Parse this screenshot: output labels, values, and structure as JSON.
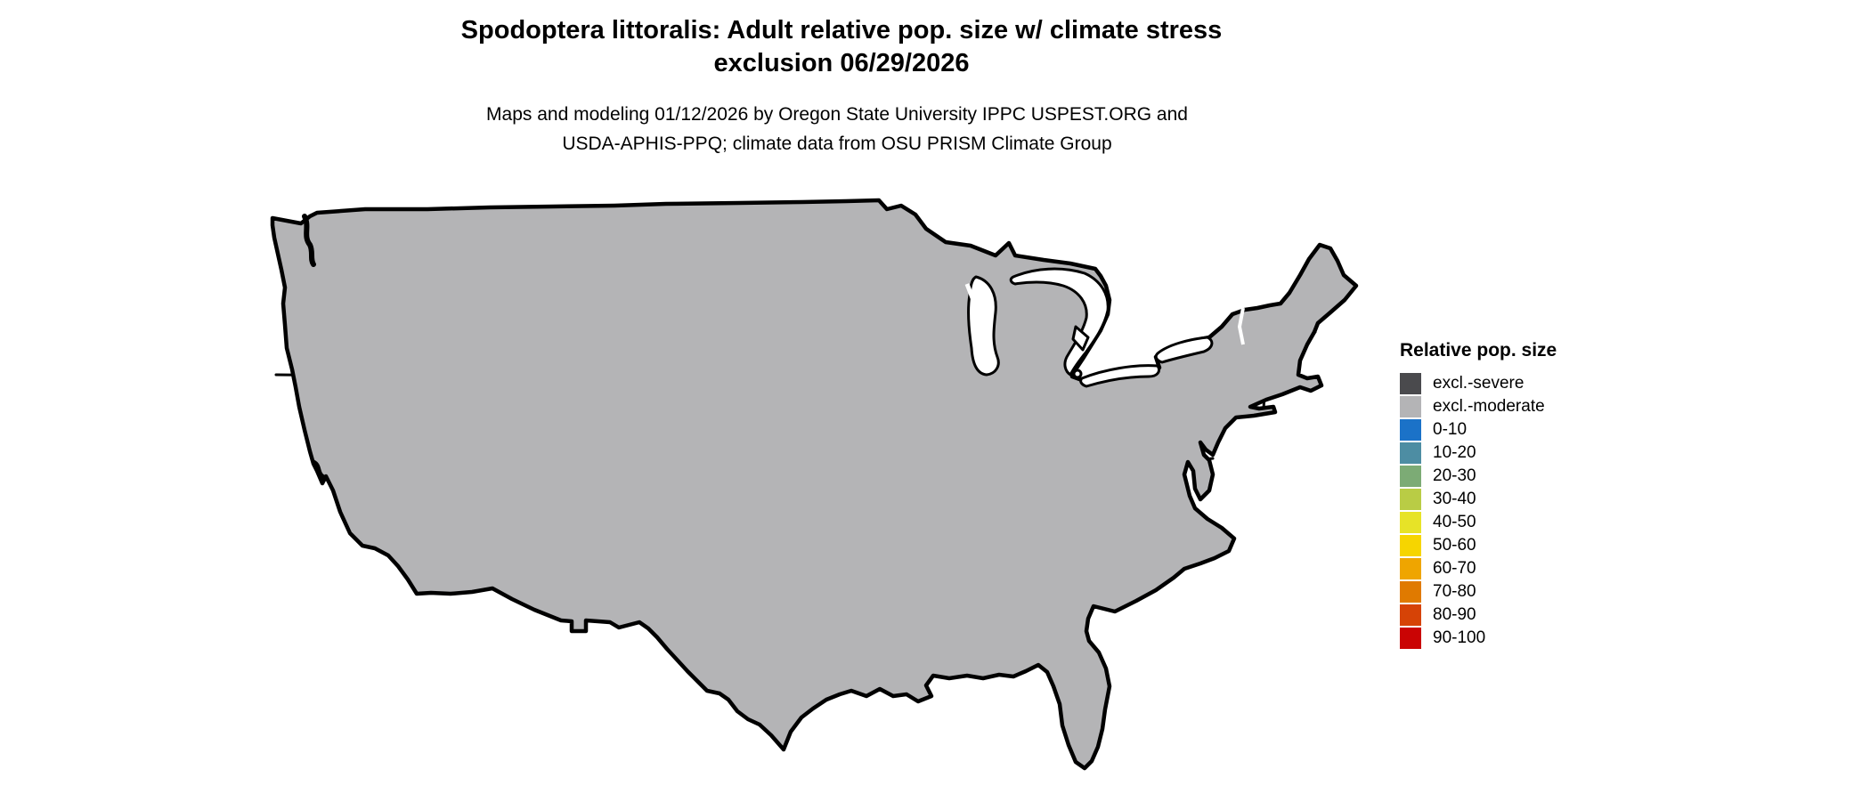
{
  "title": {
    "line1": "Spodoptera littoralis: Adult relative pop. size w/ climate stress",
    "line2": "exclusion 06/29/2026"
  },
  "subtitle": {
    "line1": "Maps and modeling 01/12/2026 by Oregon State University IPPC USPEST.ORG and",
    "line2": "USDA-APHIS-PPQ; climate data from OSU PRISM Climate Group"
  },
  "legend": {
    "title": "Relative pop. size",
    "items": [
      {
        "label": "excl.-severe",
        "color": "#4a4a4d"
      },
      {
        "label": "excl.-moderate",
        "color": "#b4b4b6"
      },
      {
        "label": "0-10",
        "color": "#1b72c8"
      },
      {
        "label": "10-20",
        "color": "#4d8da3"
      },
      {
        "label": "20-30",
        "color": "#7cab75"
      },
      {
        "label": "30-40",
        "color": "#b9cc45"
      },
      {
        "label": "40-50",
        "color": "#e7e327"
      },
      {
        "label": "50-60",
        "color": "#f6d500"
      },
      {
        "label": "60-70",
        "color": "#efa500"
      },
      {
        "label": "70-80",
        "color": "#e07a00"
      },
      {
        "label": "80-90",
        "color": "#d64306"
      },
      {
        "label": "90-100",
        "color": "#ca0404"
      }
    ]
  },
  "map": {
    "palette": {
      "severe": "#4a4a4d",
      "moderate": "#b4b4b6",
      "blue": "#1b72c8",
      "teal": "#4d8da3",
      "green": "#7cab75",
      "ygreen": "#b9cc45",
      "yellow": "#e7e327",
      "outline": "#000000",
      "water": "#ffffff"
    }
  }
}
